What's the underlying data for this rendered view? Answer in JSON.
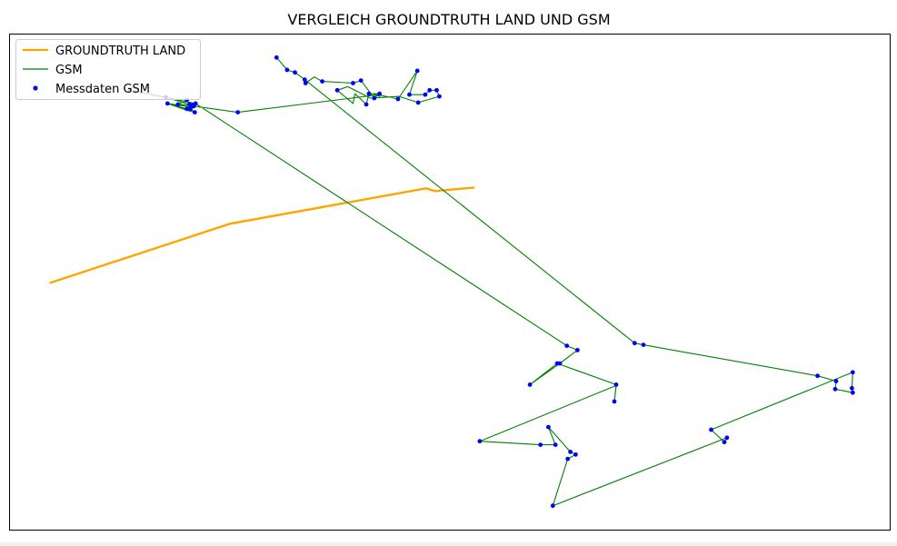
{
  "chart_data": {
    "type": "line",
    "title": "VERGLEICH GROUNDTRUTH LAND UND GSM",
    "xlabel": "",
    "ylabel": "",
    "xlim": [
      0,
      1000
    ],
    "ylim": [
      0,
      560
    ],
    "grid": false,
    "axis_ticks": false,
    "legend": "top-left",
    "series": [
      {
        "name": "GROUNDTRUTH LAND",
        "kind": "line",
        "color": "#ffa500",
        "points": [
          [
            45,
            279
          ],
          [
            250,
            346
          ],
          [
            473,
            386
          ],
          [
            483,
            383
          ],
          [
            528,
            387
          ]
        ]
      },
      {
        "name": "GSM",
        "kind": "line",
        "color": "#008000",
        "points": [
          [
            303,
            534
          ],
          [
            315,
            520
          ],
          [
            324,
            517
          ],
          [
            335,
            509
          ],
          [
            336,
            505
          ],
          [
            346,
            512
          ],
          [
            355,
            507
          ],
          [
            390,
            505
          ],
          [
            399,
            508
          ],
          [
            414,
            488
          ],
          [
            420,
            493
          ],
          [
            408,
            493
          ],
          [
            405,
            481
          ],
          [
            392,
            493
          ],
          [
            390,
            482
          ],
          [
            372,
            497
          ],
          [
            384,
            501
          ],
          [
            410,
            488
          ],
          [
            442,
            490
          ],
          [
            464,
            483
          ],
          [
            488,
            490
          ],
          [
            485,
            497
          ],
          [
            477,
            497
          ],
          [
            472,
            492
          ],
          [
            454,
            492
          ],
          [
            463,
            519
          ],
          [
            441,
            487
          ],
          [
            413,
            493
          ],
          [
            420,
            490
          ],
          [
            420,
            492
          ],
          [
            259,
            472
          ],
          [
            209,
            479
          ],
          [
            201,
            476
          ],
          [
            179,
            482
          ],
          [
            206,
            478
          ],
          [
            179,
            482
          ],
          [
            202,
            474
          ],
          [
            210,
            472
          ],
          [
            205,
            476
          ],
          [
            208,
            480
          ],
          [
            191,
            481
          ],
          [
            201,
            486
          ],
          [
            204,
            481
          ],
          [
            177,
            489
          ],
          [
            136,
            497
          ],
          [
            211,
            482
          ],
          [
            633,
            208
          ],
          [
            645,
            203
          ],
          [
            625,
            188
          ],
          [
            591,
            164
          ],
          [
            622,
            188
          ],
          [
            689,
            164
          ],
          [
            687,
            145
          ],
          [
            689,
            163
          ],
          [
            534,
            100
          ],
          [
            603,
            96
          ],
          [
            620,
            96
          ],
          [
            612,
            116
          ],
          [
            637,
            88
          ],
          [
            643,
            85
          ],
          [
            634,
            80
          ],
          [
            617,
            27
          ],
          [
            815,
            104
          ],
          [
            812,
            99
          ],
          [
            797,
            113
          ],
          [
            958,
            178
          ],
          [
            957,
            160
          ],
          [
            958,
            155
          ],
          [
            938,
            159
          ],
          [
            939,
            168
          ],
          [
            918,
            174
          ],
          [
            720,
            209
          ],
          [
            710,
            211
          ],
          [
            335,
            509
          ]
        ]
      },
      {
        "name": "Messdaten GSM",
        "kind": "scatter",
        "color": "#0000ff",
        "points": [
          [
            303,
            534
          ],
          [
            315,
            520
          ],
          [
            324,
            517
          ],
          [
            335,
            509
          ],
          [
            336,
            505
          ],
          [
            355,
            507
          ],
          [
            372,
            497
          ],
          [
            390,
            505
          ],
          [
            399,
            508
          ],
          [
            405,
            481
          ],
          [
            408,
            493
          ],
          [
            414,
            488
          ],
          [
            420,
            493
          ],
          [
            441,
            487
          ],
          [
            454,
            492
          ],
          [
            463,
            519
          ],
          [
            464,
            483
          ],
          [
            472,
            492
          ],
          [
            477,
            497
          ],
          [
            485,
            497
          ],
          [
            488,
            490
          ],
          [
            259,
            472
          ],
          [
            209,
            479
          ],
          [
            201,
            476
          ],
          [
            179,
            482
          ],
          [
            206,
            478
          ],
          [
            210,
            472
          ],
          [
            205,
            476
          ],
          [
            208,
            480
          ],
          [
            191,
            481
          ],
          [
            201,
            486
          ],
          [
            204,
            481
          ],
          [
            177,
            489
          ],
          [
            136,
            497
          ],
          [
            211,
            482
          ],
          [
            633,
            208
          ],
          [
            645,
            203
          ],
          [
            625,
            188
          ],
          [
            591,
            164
          ],
          [
            622,
            188
          ],
          [
            689,
            164
          ],
          [
            687,
            145
          ],
          [
            534,
            100
          ],
          [
            603,
            96
          ],
          [
            620,
            96
          ],
          [
            612,
            116
          ],
          [
            637,
            88
          ],
          [
            643,
            85
          ],
          [
            634,
            80
          ],
          [
            617,
            27
          ],
          [
            815,
            104
          ],
          [
            812,
            99
          ],
          [
            797,
            113
          ],
          [
            958,
            178
          ],
          [
            957,
            160
          ],
          [
            958,
            155
          ],
          [
            938,
            159
          ],
          [
            939,
            168
          ],
          [
            918,
            174
          ],
          [
            720,
            209
          ],
          [
            710,
            211
          ]
        ]
      }
    ]
  }
}
